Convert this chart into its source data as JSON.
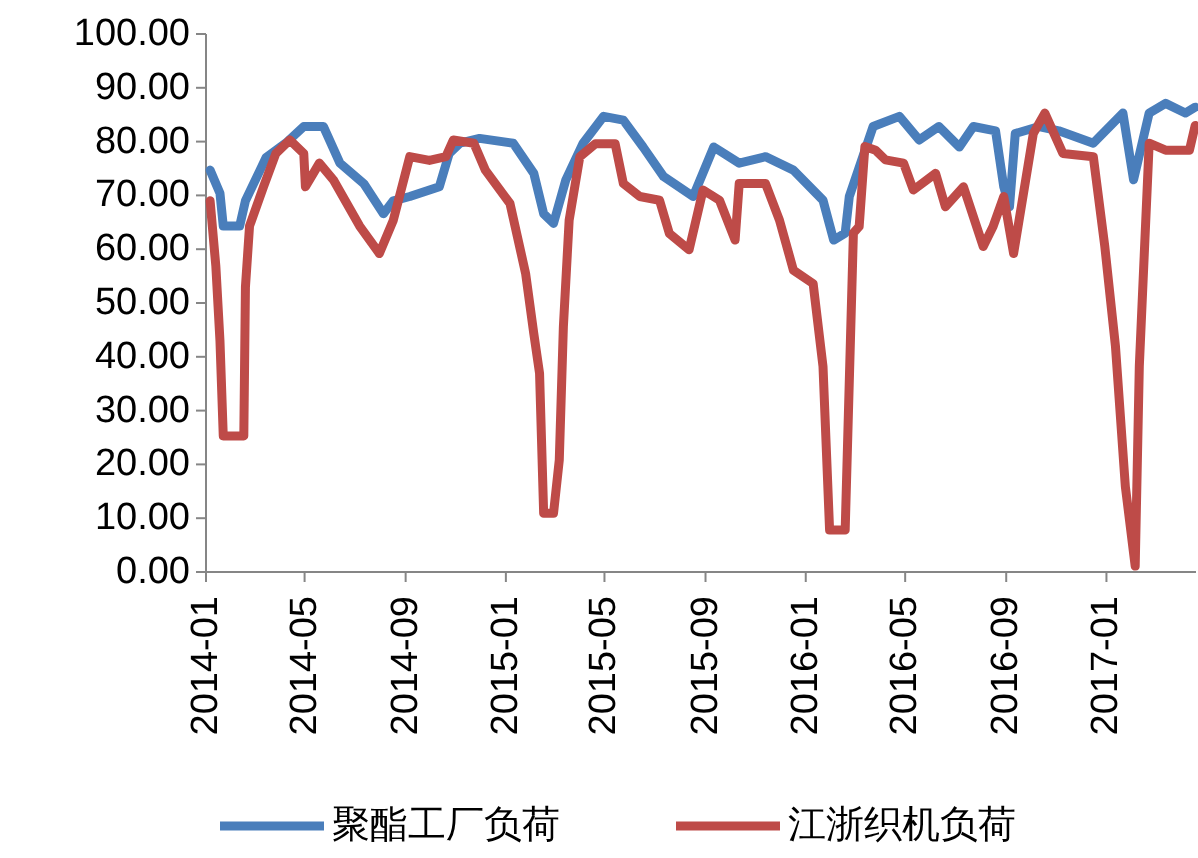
{
  "chart_data": {
    "type": "line",
    "xlim": [
      "2014-01-01",
      "2017-04-20"
    ],
    "xticks": [
      "2014-01",
      "2014-05",
      "2014-09",
      "2015-01",
      "2015-05",
      "2015-09",
      "2016-01",
      "2016-05",
      "2016-09",
      "2017-01"
    ],
    "ylim": [
      0,
      100
    ],
    "yticks": [
      {
        "value": 0,
        "label": "0.00"
      },
      {
        "value": 10,
        "label": "10.00"
      },
      {
        "value": 20,
        "label": "20.00"
      },
      {
        "value": 30,
        "label": "30.00"
      },
      {
        "value": 40,
        "label": "40.00"
      },
      {
        "value": 50,
        "label": "50.00"
      },
      {
        "value": 60,
        "label": "60.00"
      },
      {
        "value": 70,
        "label": "70.00"
      },
      {
        "value": 80,
        "label": "80.00"
      },
      {
        "value": 90,
        "label": "90.00"
      },
      {
        "value": 100,
        "label": "100.00"
      }
    ],
    "grid": false,
    "legend": "bottom",
    "marker": "none",
    "line_style": "solid",
    "series": [
      {
        "name": "聚酯工厂负荷",
        "color": "#4a7ebb",
        "x": [
          "2014-01-06",
          "2014-01-18",
          "2014-01-22",
          "2014-02-11",
          "2014-02-18",
          "2014-03-15",
          "2014-04-08",
          "2014-04-30",
          "2014-05-24",
          "2014-06-13",
          "2014-07-12",
          "2014-08-05",
          "2014-08-17",
          "2014-09-06",
          "2014-10-12",
          "2014-10-24",
          "2014-11-06",
          "2014-11-30",
          "2015-01-10",
          "2015-02-04",
          "2015-02-16",
          "2015-02-28",
          "2015-03-15",
          "2015-04-05",
          "2015-04-30",
          "2015-05-24",
          "2015-06-17",
          "2015-07-12",
          "2015-08-17",
          "2015-09-11",
          "2015-10-12",
          "2015-11-13",
          "2015-12-17",
          "2016-01-22",
          "2016-02-04",
          "2016-02-18",
          "2016-02-23",
          "2016-03-23",
          "2016-04-24",
          "2016-05-18",
          "2016-06-11",
          "2016-07-06",
          "2016-07-23",
          "2016-08-19",
          "2016-08-29",
          "2016-09-05",
          "2016-09-12",
          "2016-10-11",
          "2016-11-04",
          "2016-12-16",
          "2017-01-21",
          "2017-02-03",
          "2017-02-22",
          "2017-03-14",
          "2017-04-07",
          "2017-04-19"
        ],
        "values": [
          74.7,
          70.4,
          64.3,
          64.3,
          69,
          77,
          79.7,
          82.8,
          82.8,
          76,
          72.2,
          66.6,
          69,
          69.8,
          71.6,
          77.8,
          79.7,
          80.6,
          79.7,
          74.1,
          66.6,
          64.8,
          72.9,
          79.7,
          84.7,
          84,
          79,
          73.5,
          69.8,
          79,
          76,
          77.2,
          74.7,
          69.1,
          61.7,
          63,
          69.8,
          82.8,
          84.7,
          80.3,
          82.8,
          79,
          82.8,
          82,
          71.6,
          67.9,
          81.5,
          82.8,
          82,
          79.7,
          85.3,
          72.9,
          85.3,
          87.1,
          85.3,
          86.4
        ]
      },
      {
        "name": "江浙织机负荷",
        "color": "#be4b48",
        "x": [
          "2014-01-06",
          "2014-01-13",
          "2014-01-18",
          "2014-01-22",
          "2014-02-16",
          "2014-02-18",
          "2014-02-23",
          "2014-03-12",
          "2014-03-27",
          "2014-04-13",
          "2014-04-30",
          "2014-05-02",
          "2014-05-19",
          "2014-06-05",
          "2014-07-07",
          "2014-07-31",
          "2014-08-17",
          "2014-09-06",
          "2014-09-30",
          "2014-10-20",
          "2014-10-29",
          "2014-11-23",
          "2014-12-07",
          "2015-01-06",
          "2015-01-25",
          "2015-02-04",
          "2015-02-11",
          "2015-02-16",
          "2015-02-28",
          "2015-03-07",
          "2015-03-12",
          "2015-03-19",
          "2015-04-01",
          "2015-04-20",
          "2015-05-14",
          "2015-05-24",
          "2015-06-13",
          "2015-07-07",
          "2015-07-19",
          "2015-08-12",
          "2015-08-29",
          "2015-09-18",
          "2015-10-07",
          "2015-10-12",
          "2015-11-13",
          "2015-11-30",
          "2015-12-17",
          "2016-01-10",
          "2016-01-22",
          "2016-01-30",
          "2016-02-18",
          "2016-02-28",
          "2016-03-06",
          "2016-03-13",
          "2016-03-26",
          "2016-04-07",
          "2016-04-29",
          "2016-05-11",
          "2016-06-07",
          "2016-06-19",
          "2016-07-11",
          "2016-08-04",
          "2016-08-16",
          "2016-08-29",
          "2016-09-10",
          "2016-10-04",
          "2016-10-18",
          "2016-11-09",
          "2016-12-16",
          "2016-12-30",
          "2017-01-12",
          "2017-01-24",
          "2017-02-05",
          "2017-02-10",
          "2017-02-22",
          "2017-03-14",
          "2017-04-12",
          "2017-04-19"
        ],
        "values": [
          69,
          56.8,
          43,
          25.3,
          25.3,
          53,
          64.3,
          71.6,
          77.8,
          80.3,
          77.8,
          71.6,
          76,
          72.9,
          64.3,
          59.2,
          65.4,
          77.2,
          76.5,
          77.2,
          80.3,
          79.7,
          74.7,
          68.5,
          55.5,
          44.3,
          36.9,
          10.9,
          10.9,
          20.8,
          45.6,
          65.4,
          77.2,
          79.6,
          79.6,
          72.2,
          69.8,
          69.1,
          62.9,
          59.9,
          71,
          69.1,
          61.7,
          72.2,
          72.2,
          65.4,
          56.1,
          53.6,
          38.2,
          7.8,
          7.8,
          63,
          64.2,
          79.1,
          78.4,
          76.6,
          76,
          71,
          74.1,
          67.9,
          71.6,
          60.5,
          64.2,
          69.8,
          59.2,
          81.5,
          85.3,
          77.8,
          77.2,
          60.5,
          41.9,
          15.9,
          1.1,
          38.3,
          79.7,
          78.4,
          78.4,
          83
        ]
      }
    ]
  }
}
